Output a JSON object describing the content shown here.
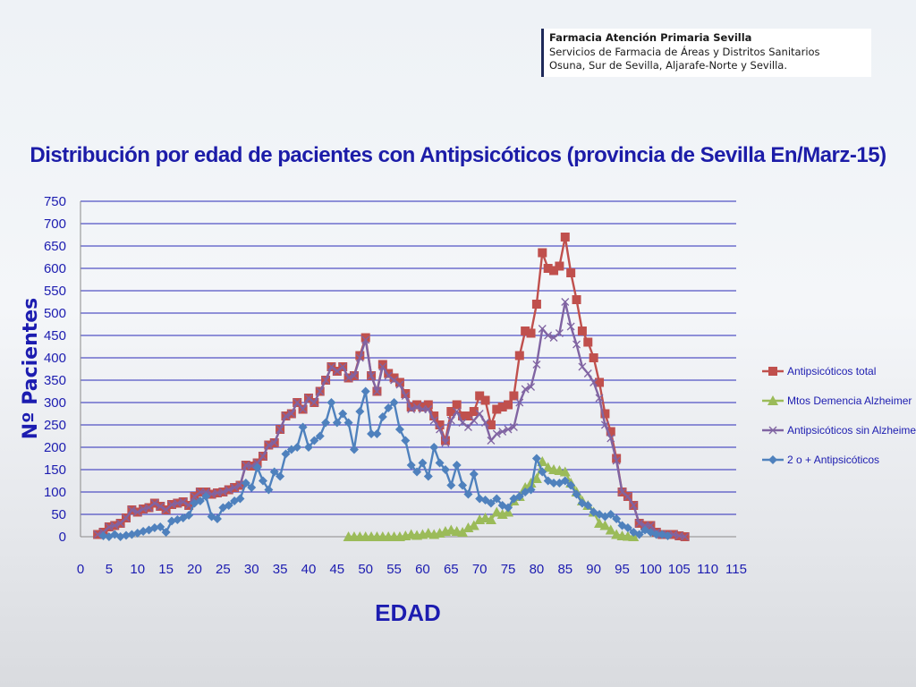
{
  "header": {
    "org": "Farmacia Atención Primaria Sevilla",
    "line2": "Servicios de Farmacia de Áreas y Distritos Sanitarios",
    "line3": "Osuna, Sur de Sevilla, Aljarafe-Norte y Sevilla."
  },
  "chart_data": {
    "type": "line",
    "title": "Distribución por edad de pacientes con Antipsicóticos (provincia de Sevilla En/Marz-15)",
    "xlabel": "EDAD",
    "ylabel": "Nº Pacientes",
    "xlim": [
      0,
      115
    ],
    "ylim": [
      0,
      750
    ],
    "x_ticks": [
      0,
      5,
      10,
      15,
      20,
      25,
      30,
      35,
      40,
      45,
      50,
      55,
      60,
      65,
      70,
      75,
      80,
      85,
      90,
      95,
      100,
      105,
      110,
      115
    ],
    "y_ticks": [
      0,
      50,
      100,
      150,
      200,
      250,
      300,
      350,
      400,
      450,
      500,
      550,
      600,
      650,
      700,
      750
    ],
    "grid": "horizontal",
    "legend_position": "right",
    "series": [
      {
        "name": "Antipsicóticos total",
        "color": "#c0504d",
        "marker": "square",
        "x": [
          3,
          4,
          5,
          6,
          7,
          8,
          9,
          10,
          11,
          12,
          13,
          14,
          15,
          16,
          17,
          18,
          19,
          20,
          21,
          22,
          23,
          24,
          25,
          26,
          27,
          28,
          29,
          30,
          31,
          32,
          33,
          34,
          35,
          36,
          37,
          38,
          39,
          40,
          41,
          42,
          43,
          44,
          45,
          46,
          47,
          48,
          49,
          50,
          51,
          52,
          53,
          54,
          55,
          56,
          57,
          58,
          59,
          60,
          61,
          62,
          63,
          64,
          65,
          66,
          67,
          68,
          69,
          70,
          71,
          72,
          73,
          74,
          75,
          76,
          77,
          78,
          79,
          80,
          81,
          82,
          83,
          84,
          85,
          86,
          87,
          88,
          89,
          90,
          91,
          92,
          93,
          94,
          95,
          96,
          97,
          98,
          99,
          100,
          101,
          102,
          103,
          104,
          105,
          106
        ],
        "y": [
          5,
          10,
          22,
          25,
          30,
          42,
          60,
          55,
          62,
          65,
          75,
          68,
          60,
          72,
          75,
          78,
          70,
          90,
          100,
          100,
          95,
          98,
          100,
          105,
          110,
          115,
          160,
          158,
          165,
          180,
          205,
          210,
          240,
          270,
          275,
          300,
          285,
          310,
          300,
          325,
          350,
          380,
          370,
          380,
          355,
          360,
          405,
          445,
          360,
          325,
          385,
          365,
          355,
          345,
          320,
          290,
          295,
          290,
          295,
          270,
          250,
          215,
          280,
          295,
          270,
          270,
          280,
          315,
          305,
          250,
          285,
          290,
          295,
          315,
          405,
          460,
          455,
          520,
          635,
          600,
          595,
          605,
          670,
          590,
          530,
          460,
          435,
          400,
          345,
          275,
          235,
          175,
          100,
          90,
          70,
          30,
          25,
          25,
          10,
          5,
          5,
          5,
          2,
          0
        ]
      },
      {
        "name": "Mtos Demencia Alzheimer",
        "color": "#9bbb59",
        "marker": "triangle",
        "x": [
          47,
          48,
          49,
          50,
          51,
          52,
          53,
          54,
          55,
          56,
          57,
          58,
          59,
          60,
          61,
          62,
          63,
          64,
          65,
          66,
          67,
          68,
          69,
          70,
          71,
          72,
          73,
          74,
          75,
          76,
          77,
          78,
          79,
          80,
          81,
          82,
          83,
          84,
          85,
          86,
          87,
          88,
          89,
          90,
          91,
          92,
          93,
          94,
          95,
          96,
          97
        ],
        "y": [
          0,
          0,
          0,
          0,
          0,
          0,
          0,
          0,
          0,
          0,
          2,
          5,
          3,
          5,
          8,
          5,
          8,
          12,
          15,
          12,
          10,
          20,
          25,
          38,
          42,
          38,
          55,
          50,
          55,
          80,
          90,
          110,
          120,
          130,
          168,
          155,
          150,
          148,
          145,
          120,
          100,
          80,
          70,
          55,
          30,
          25,
          15,
          5,
          2,
          1,
          0
        ]
      },
      {
        "name": "Antipsicóticos sin Alzheimer",
        "color": "#8064a2",
        "marker": "x",
        "x": [
          3,
          4,
          5,
          6,
          7,
          8,
          9,
          10,
          11,
          12,
          13,
          14,
          15,
          16,
          17,
          18,
          19,
          20,
          21,
          22,
          23,
          24,
          25,
          26,
          27,
          28,
          29,
          30,
          31,
          32,
          33,
          34,
          35,
          36,
          37,
          38,
          39,
          40,
          41,
          42,
          43,
          44,
          45,
          46,
          47,
          48,
          49,
          50,
          51,
          52,
          53,
          54,
          55,
          56,
          57,
          58,
          59,
          60,
          61,
          62,
          63,
          64,
          65,
          66,
          67,
          68,
          69,
          70,
          71,
          72,
          73,
          74,
          75,
          76,
          77,
          78,
          79,
          80,
          81,
          82,
          83,
          84,
          85,
          86,
          87,
          88,
          89,
          90,
          91,
          92,
          93,
          94,
          95,
          96,
          97,
          98,
          99,
          100,
          101,
          102,
          103,
          104,
          105,
          106
        ],
        "y": [
          5,
          10,
          22,
          25,
          30,
          42,
          60,
          55,
          62,
          65,
          75,
          68,
          60,
          72,
          75,
          78,
          70,
          90,
          100,
          100,
          95,
          98,
          100,
          105,
          110,
          115,
          160,
          158,
          165,
          180,
          205,
          210,
          240,
          270,
          275,
          300,
          285,
          310,
          300,
          325,
          350,
          380,
          370,
          380,
          355,
          360,
          400,
          440,
          360,
          325,
          380,
          360,
          350,
          340,
          315,
          285,
          290,
          285,
          285,
          260,
          240,
          210,
          260,
          280,
          255,
          245,
          260,
          275,
          255,
          215,
          230,
          235,
          240,
          245,
          300,
          330,
          335,
          385,
          465,
          450,
          445,
          455,
          525,
          470,
          430,
          380,
          365,
          345,
          310,
          250,
          220,
          170,
          100,
          90,
          70,
          30,
          25,
          25,
          10,
          5,
          5,
          5,
          2,
          0
        ]
      },
      {
        "name": "2 o + Antipsicóticos",
        "color": "#4f81bd",
        "marker": "diamond",
        "x": [
          4,
          5,
          6,
          7,
          8,
          9,
          10,
          11,
          12,
          13,
          14,
          15,
          16,
          17,
          18,
          19,
          20,
          21,
          22,
          23,
          24,
          25,
          26,
          27,
          28,
          29,
          30,
          31,
          32,
          33,
          34,
          35,
          36,
          37,
          38,
          39,
          40,
          41,
          42,
          43,
          44,
          45,
          46,
          47,
          48,
          49,
          50,
          51,
          52,
          53,
          54,
          55,
          56,
          57,
          58,
          59,
          60,
          61,
          62,
          63,
          64,
          65,
          66,
          67,
          68,
          69,
          70,
          71,
          72,
          73,
          74,
          75,
          76,
          77,
          78,
          79,
          80,
          81,
          82,
          83,
          84,
          85,
          86,
          87,
          88,
          89,
          90,
          91,
          92,
          93,
          94,
          95,
          96,
          97,
          98,
          99,
          100,
          101,
          102,
          103
        ],
        "y": [
          2,
          0,
          5,
          0,
          3,
          5,
          8,
          12,
          15,
          20,
          22,
          10,
          35,
          38,
          42,
          48,
          75,
          80,
          90,
          45,
          40,
          65,
          70,
          80,
          85,
          120,
          110,
          155,
          125,
          105,
          145,
          135,
          185,
          195,
          200,
          245,
          200,
          215,
          225,
          255,
          300,
          255,
          275,
          255,
          195,
          280,
          325,
          230,
          230,
          268,
          288,
          300,
          240,
          215,
          160,
          145,
          165,
          135,
          200,
          165,
          150,
          115,
          160,
          115,
          95,
          140,
          85,
          82,
          75,
          85,
          70,
          65,
          85,
          90,
          100,
          105,
          175,
          145,
          125,
          120,
          120,
          125,
          115,
          95,
          75,
          70,
          55,
          50,
          45,
          50,
          40,
          25,
          20,
          10,
          5,
          15,
          10,
          5,
          5,
          2
        ]
      }
    ]
  }
}
